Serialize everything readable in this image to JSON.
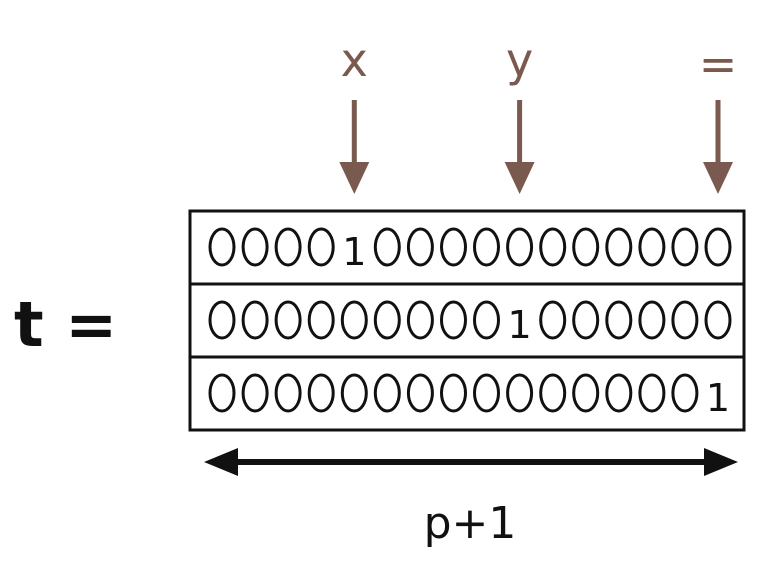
{
  "lhs_label": "t =",
  "pointer_labels": [
    "x",
    "y",
    "="
  ],
  "pointer_color": "#7a5a4e",
  "ink_color": "#111111",
  "rows": [
    "0000100000000000",
    "0000000001000000",
    "0000000000000001"
  ],
  "width_label": "p+1"
}
